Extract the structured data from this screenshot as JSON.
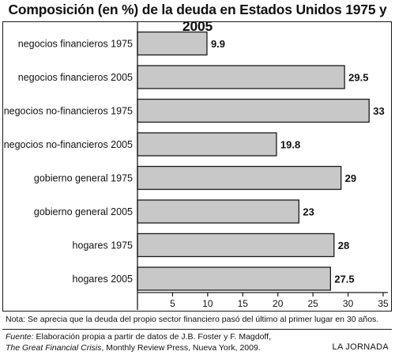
{
  "chart_data": {
    "type": "bar",
    "orientation": "horizontal",
    "title": "Composición (en %) de la deuda en Estados Unidos 1975 y 2005",
    "categories": [
      "negocios financieros 1975",
      "negocios financieros 2005",
      "negocios no-financieros 1975",
      "negocios no-financieros 2005",
      "gobierno general 1975",
      "gobierno general 2005",
      "hogares 1975",
      "hogares 2005"
    ],
    "values": [
      9.9,
      29.5,
      33,
      19.8,
      29,
      23,
      28,
      27.5
    ],
    "value_labels": [
      "9.9",
      "29.5",
      "33",
      "19.8",
      "29",
      "23",
      "28",
      "27.5"
    ],
    "xticks": [
      5,
      10,
      15,
      20,
      25,
      30,
      35
    ],
    "xlim": [
      0,
      35
    ],
    "xlabel": "",
    "ylabel": "",
    "grid": false,
    "colors": {
      "bar_fill": "#c8c8c8",
      "bar_stroke": "#1a1a1a"
    }
  },
  "note": "Nota: Se aprecia que la deuda del propio sector financiero pasó del último al primer lugar en 30 años.",
  "source": {
    "label": "Fuente:",
    "line1_rest": " Elaboración propia a partir de datos de J.B. Foster y F. Magdoff,",
    "book": "The Great Financial Crisis",
    "line2_rest": ", Monthly Review Press, Nueva York, 2009."
  },
  "credit": "LA JORNADA"
}
